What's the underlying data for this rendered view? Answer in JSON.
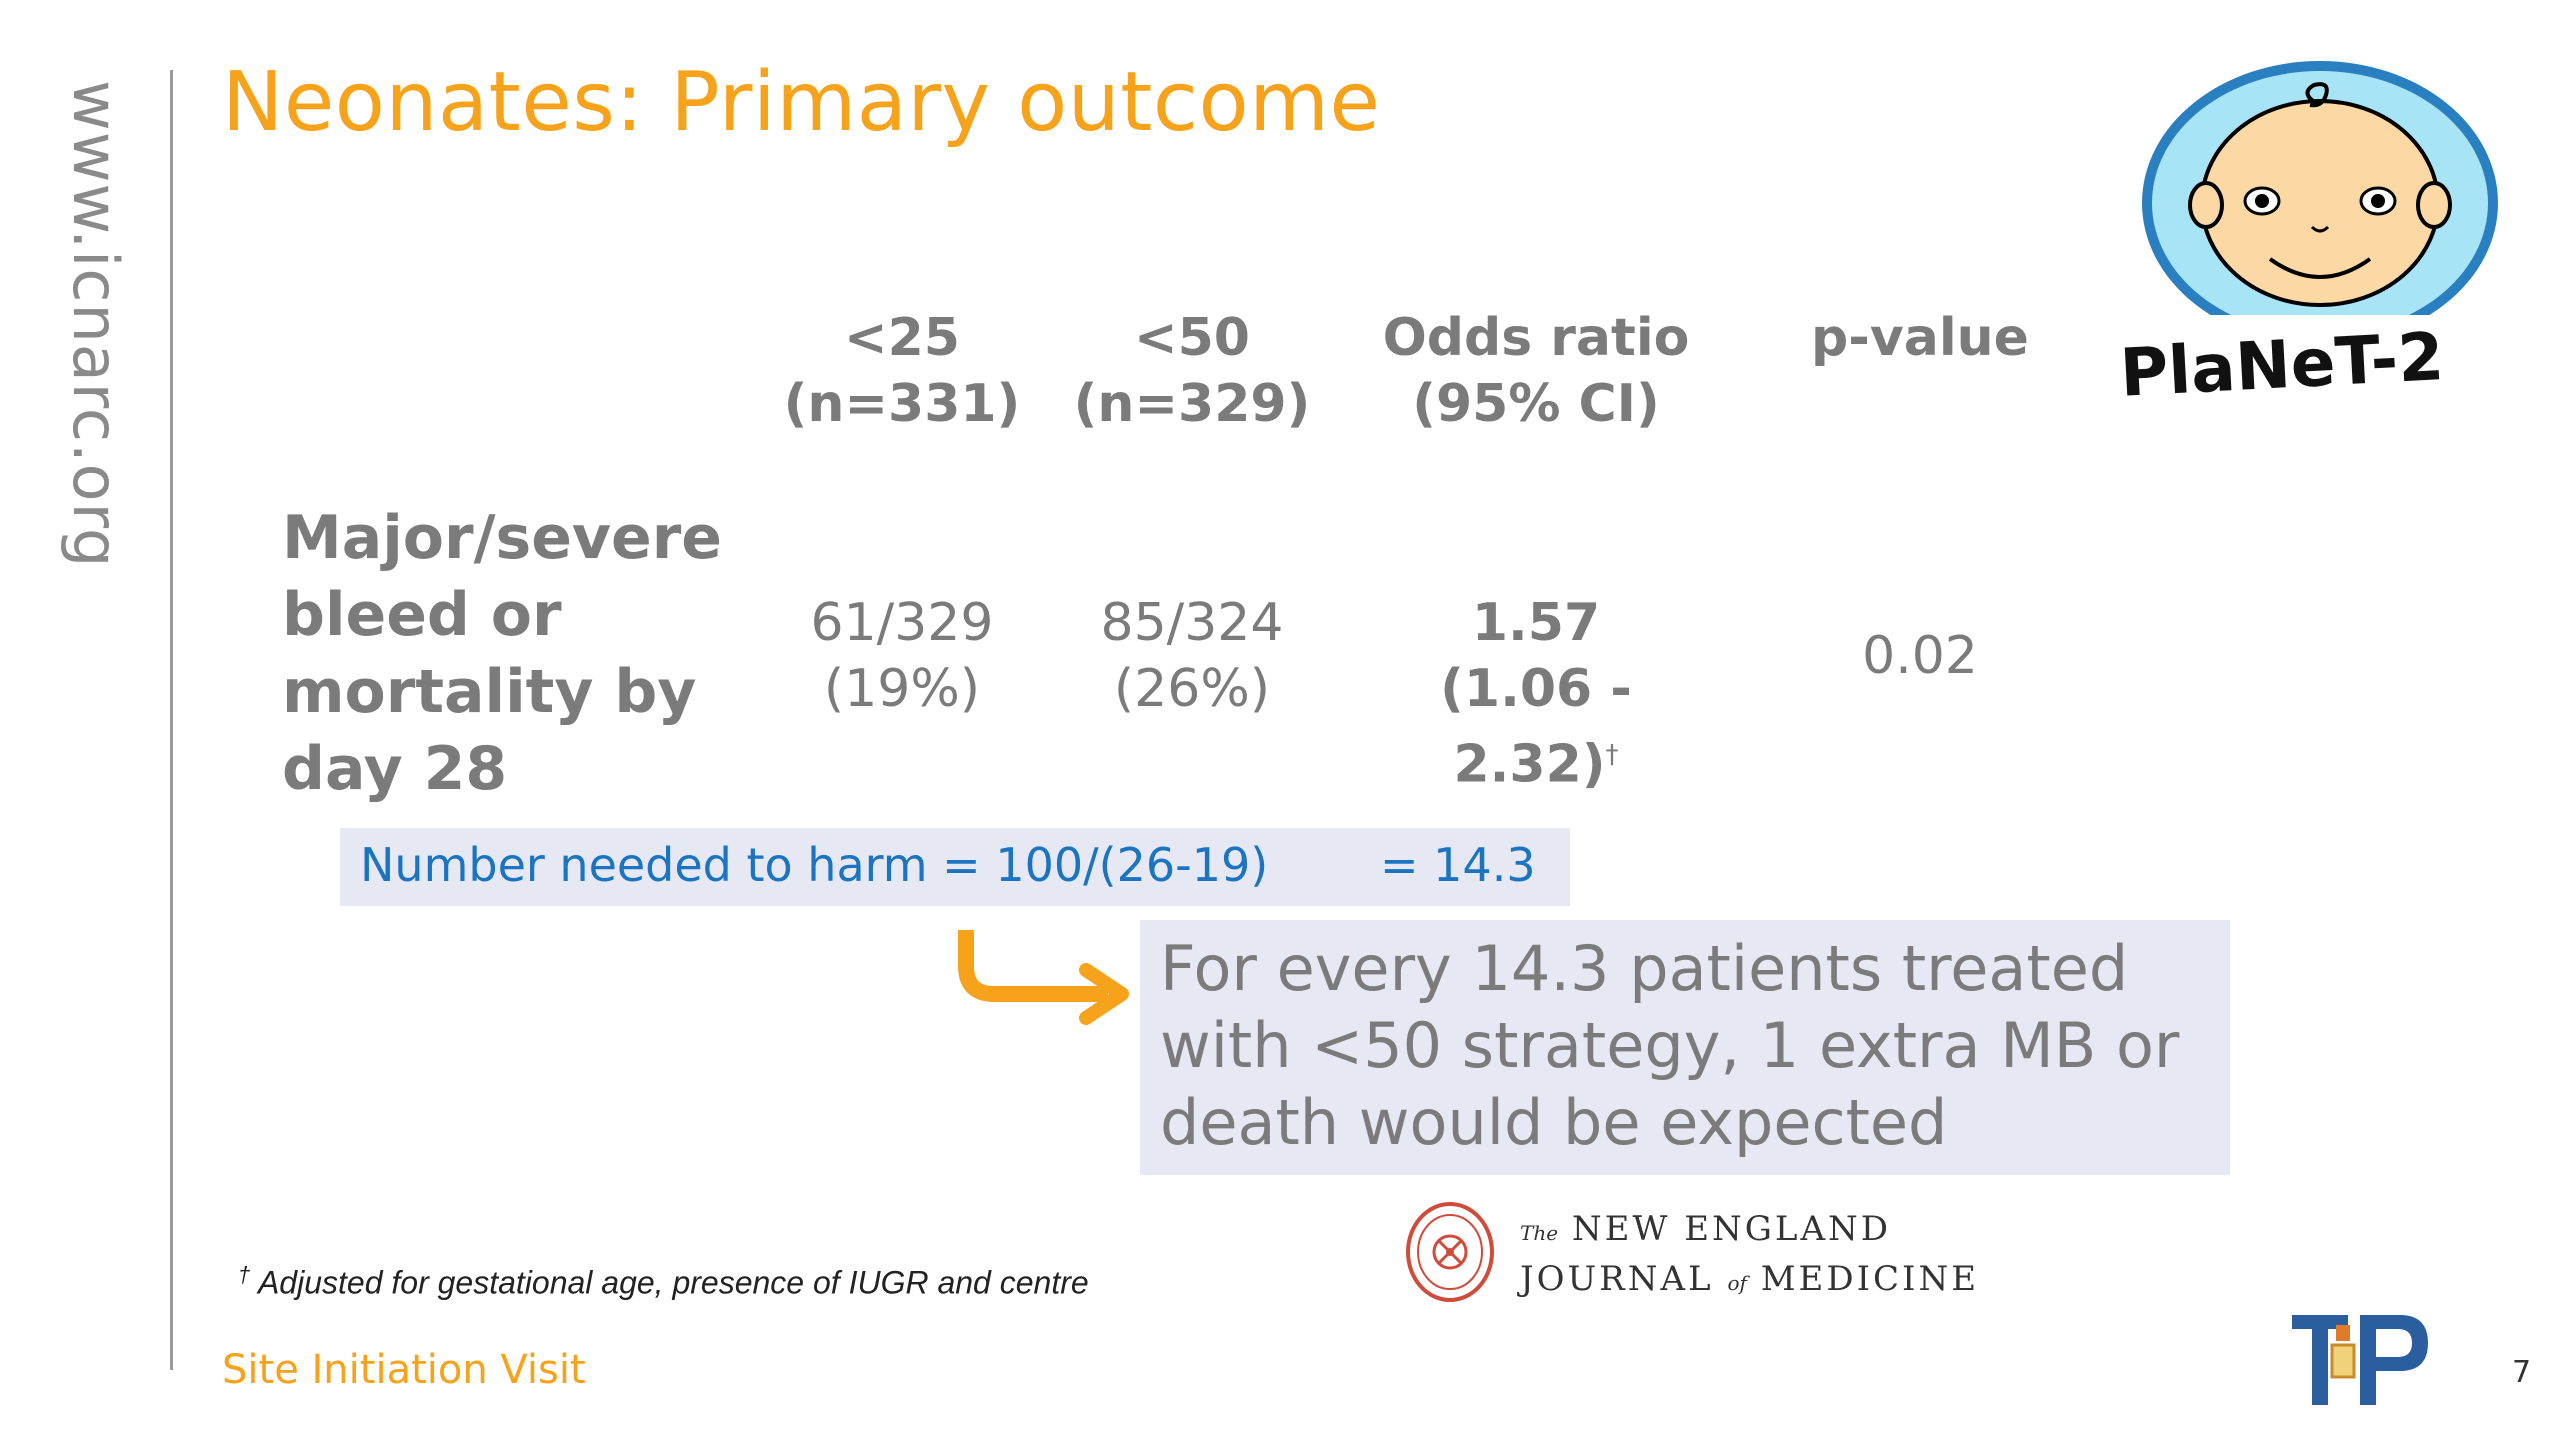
{
  "sidebar": {
    "url": "www.icnarc.org"
  },
  "slide": {
    "title": "Neonates: Primary outcome",
    "footer": "Site Initiation Visit",
    "page_number": "7"
  },
  "table": {
    "headers": [
      {
        "line1": "<25",
        "line2": "(n=331)"
      },
      {
        "line1": "<50",
        "line2": "(n=329)"
      },
      {
        "line1": "Odds ratio",
        "line2": "(95% CI)"
      },
      {
        "line1": "p-value",
        "line2": ""
      }
    ],
    "row": {
      "label": "Major/severe bleed or mortality by day 28",
      "cells": [
        {
          "line1": "61/329",
          "line2": "(19%)"
        },
        {
          "line1": "85/324",
          "line2": "(26%)"
        },
        {
          "line1": "1.57",
          "line2": "(1.06 - 2.32)",
          "marker": "†"
        },
        {
          "line1": "0.02",
          "line2": ""
        }
      ]
    }
  },
  "nnh": {
    "text": "Number needed to harm = 100/(26-19)",
    "result": "= 14.3"
  },
  "callout": {
    "text": "For every 14.3 patients treated with <50 strategy, 1 extra MB or death would be expected"
  },
  "footnote": {
    "marker": "†",
    "text": " Adjusted for gestational age, presence of IUGR and centre"
  },
  "logos": {
    "planet": "PlaNeT-2",
    "nejm_prefix": "The",
    "nejm_line1": "NEW ENGLAND",
    "nejm_line2a": "JOURNAL",
    "nejm_of": "of",
    "nejm_line2b": "MEDICINE",
    "tip": "T4P"
  },
  "colors": {
    "accent": "#f7a21b",
    "text_grey": "#7b7b7b",
    "highlight_bg": "#e6e9f4",
    "link_blue": "#1b74c2"
  }
}
